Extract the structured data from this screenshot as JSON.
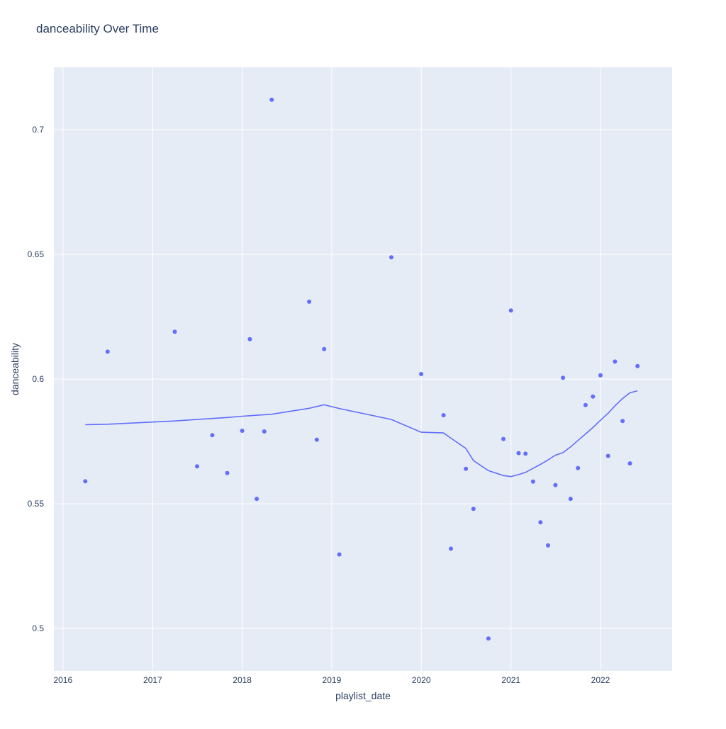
{
  "chart_data": {
    "type": "scatter",
    "title": "danceability Over Time",
    "xlabel": "playlist_date",
    "ylabel": "danceability",
    "x_range": [
      "2015-11-25",
      "2022-10-20"
    ],
    "y_range": [
      0.483,
      0.725
    ],
    "x_ticks": [
      "2016",
      "2017",
      "2018",
      "2019",
      "2020",
      "2021",
      "2022"
    ],
    "y_ticks": [
      0.5,
      0.55,
      0.6,
      0.65,
      0.7
    ],
    "y_tick_labels": [
      "0.5",
      "0.55",
      "0.6",
      "0.65",
      "0.7"
    ],
    "grid": true,
    "legend": "none",
    "colors": {
      "marker": "#636efa",
      "line": "#636efa",
      "plot_bg": "#e5ecf6",
      "grid": "#ffffff",
      "text": "#2a3f5f"
    },
    "series": [
      {
        "mode": "markers",
        "points": [
          [
            "2016-04-01",
            0.559
          ],
          [
            "2016-07-01",
            0.611
          ],
          [
            "2017-04-01",
            0.619
          ],
          [
            "2017-07-01",
            0.565
          ],
          [
            "2017-09-01",
            0.5775
          ],
          [
            "2017-11-01",
            0.5623
          ],
          [
            "2018-01-01",
            0.5793
          ],
          [
            "2018-02-01",
            0.616
          ],
          [
            "2018-03-01",
            0.552
          ],
          [
            "2018-04-01",
            0.579
          ],
          [
            "2018-05-01",
            0.712
          ],
          [
            "2018-10-01",
            0.631
          ],
          [
            "2018-11-01",
            0.5757
          ],
          [
            "2018-12-01",
            0.612
          ],
          [
            "2019-02-01",
            0.5297
          ],
          [
            "2019-09-01",
            0.6488
          ],
          [
            "2020-01-01",
            0.602
          ],
          [
            "2020-04-01",
            0.5855
          ],
          [
            "2020-05-01",
            0.532
          ],
          [
            "2020-07-01",
            0.564
          ],
          [
            "2020-08-01",
            0.548
          ],
          [
            "2020-10-01",
            0.496
          ],
          [
            "2020-12-01",
            0.576
          ],
          [
            "2021-01-01",
            0.6275
          ],
          [
            "2021-02-01",
            0.5703
          ],
          [
            "2021-03-01",
            0.5701
          ],
          [
            "2021-04-01",
            0.5589
          ],
          [
            "2021-05-01",
            0.5426
          ],
          [
            "2021-06-01",
            0.5333
          ],
          [
            "2021-07-01",
            0.5575
          ],
          [
            "2021-08-01",
            0.6005
          ],
          [
            "2021-09-01",
            0.552
          ],
          [
            "2021-10-01",
            0.5643
          ],
          [
            "2021-11-01",
            0.5896
          ],
          [
            "2021-12-01",
            0.593
          ],
          [
            "2022-01-01",
            0.6015
          ],
          [
            "2022-02-01",
            0.5692
          ],
          [
            "2022-03-01",
            0.607
          ],
          [
            "2022-04-01",
            0.5832
          ],
          [
            "2022-05-01",
            0.5662
          ],
          [
            "2022-06-01",
            0.6052
          ]
        ]
      },
      {
        "mode": "lines",
        "points": [
          [
            "2016-04-01",
            0.5817
          ],
          [
            "2016-07-01",
            0.5819
          ],
          [
            "2017-04-01",
            0.5832
          ],
          [
            "2017-07-01",
            0.5838
          ],
          [
            "2017-09-01",
            0.5842
          ],
          [
            "2017-11-01",
            0.5846
          ],
          [
            "2018-01-01",
            0.5851
          ],
          [
            "2018-02-01",
            0.5853
          ],
          [
            "2018-03-01",
            0.5855
          ],
          [
            "2018-04-01",
            0.5857
          ],
          [
            "2018-05-01",
            0.5859
          ],
          [
            "2018-10-01",
            0.5883
          ],
          [
            "2018-11-01",
            0.589
          ],
          [
            "2018-12-01",
            0.5897
          ],
          [
            "2019-02-01",
            0.5882
          ],
          [
            "2019-09-01",
            0.5838
          ],
          [
            "2020-01-01",
            0.5787
          ],
          [
            "2020-04-01",
            0.5784
          ],
          [
            "2020-05-01",
            0.5763
          ],
          [
            "2020-07-01",
            0.5722
          ],
          [
            "2020-08-01",
            0.5673
          ],
          [
            "2020-10-01",
            0.5633
          ],
          [
            "2020-12-01",
            0.5613
          ],
          [
            "2021-01-01",
            0.5609
          ],
          [
            "2021-02-01",
            0.5617
          ],
          [
            "2021-03-01",
            0.5626
          ],
          [
            "2021-04-01",
            0.5642
          ],
          [
            "2021-05-01",
            0.5658
          ],
          [
            "2021-06-01",
            0.5676
          ],
          [
            "2021-07-01",
            0.5695
          ],
          [
            "2021-08-01",
            0.5705
          ],
          [
            "2021-09-01",
            0.5728
          ],
          [
            "2021-10-01",
            0.5754
          ],
          [
            "2021-11-01",
            0.578
          ],
          [
            "2021-12-01",
            0.5806
          ],
          [
            "2022-01-01",
            0.5835
          ],
          [
            "2022-02-01",
            0.5863
          ],
          [
            "2022-03-01",
            0.5893
          ],
          [
            "2022-04-01",
            0.5922
          ],
          [
            "2022-05-01",
            0.5945
          ],
          [
            "2022-06-01",
            0.5953
          ]
        ]
      }
    ]
  }
}
